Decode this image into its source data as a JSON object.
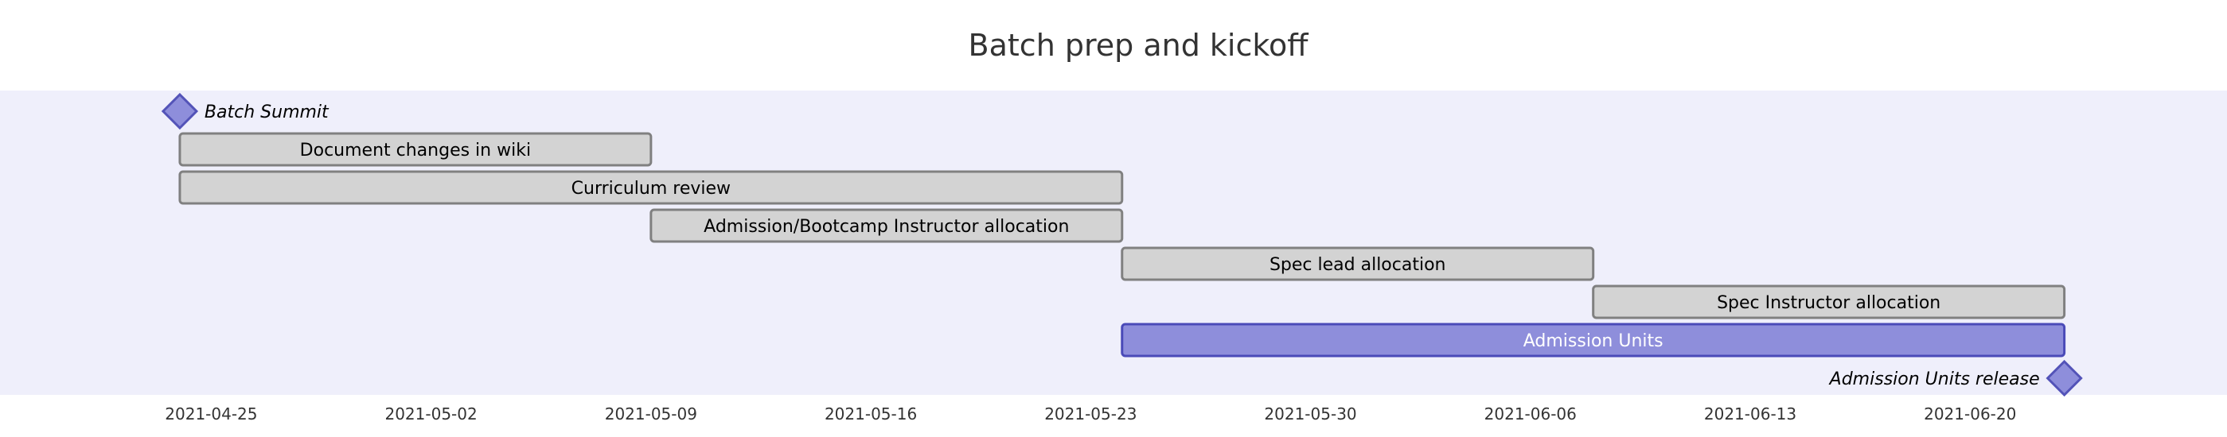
{
  "chart_data": {
    "type": "gantt",
    "title": "Batch prep and kickoff",
    "x_axis": {
      "start": "2021-04-22",
      "end": "2021-06-26",
      "ticks": [
        "2021-04-25",
        "2021-05-02",
        "2021-05-09",
        "2021-05-16",
        "2021-05-23",
        "2021-05-30",
        "2021-06-06",
        "2021-06-13",
        "2021-06-20"
      ]
    },
    "tasks": [
      {
        "name": "Batch Summit",
        "kind": "milestone",
        "date": "2021-04-24",
        "label_side": "right"
      },
      {
        "name": "Document changes in wiki",
        "kind": "task",
        "start": "2021-04-24",
        "end": "2021-05-09"
      },
      {
        "name": "Curriculum review",
        "kind": "task",
        "start": "2021-04-24",
        "end": "2021-05-24"
      },
      {
        "name": "Admission/Bootcamp Instructor allocation",
        "kind": "task",
        "start": "2021-05-09",
        "end": "2021-05-24"
      },
      {
        "name": "Spec lead allocation",
        "kind": "task",
        "start": "2021-05-24",
        "end": "2021-06-08"
      },
      {
        "name": "Spec Instructor allocation",
        "kind": "task",
        "start": "2021-06-08",
        "end": "2021-06-23"
      },
      {
        "name": "Admission Units",
        "kind": "active",
        "start": "2021-05-24",
        "end": "2021-06-23"
      },
      {
        "name": "Admission Units release",
        "kind": "milestone",
        "date": "2021-06-23",
        "label_side": "left"
      }
    ],
    "colors": {
      "band": "#efeffb",
      "task_fill": "#d3d3d3",
      "task_stroke": "#808080",
      "active_fill": "#8e8edb",
      "active_stroke": "#4a4ab8",
      "milestone_fill": "#8e8edb",
      "milestone_stroke": "#5353b8",
      "active_text": "#ffffff",
      "task_text": "#000000"
    }
  }
}
